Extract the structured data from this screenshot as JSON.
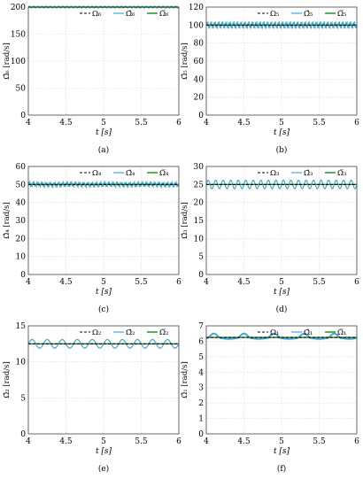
{
  "colors": {
    "ref": "#000000",
    "est": "#4aa3df",
    "filt": "#1a8a1a",
    "grid": "#d9d9d9",
    "frame": "#444444"
  },
  "chart_data": [
    {
      "type": "line",
      "caption": "(a)",
      "xlabel": "t [s]",
      "ylabel": "Ω̂₆ [rad/s]",
      "xlim": [
        4,
        6
      ],
      "ylim": [
        0,
        200
      ],
      "xticks": [
        "4",
        "4.5",
        "5",
        "5.5",
        "6"
      ],
      "yticks": [
        "0",
        "50",
        "100",
        "150",
        "200"
      ],
      "legend": [
        "Ω₆",
        "Ω̂₆",
        "Ω̅₆"
      ],
      "series": [
        {
          "name": "Ω₆",
          "y_const": 200
        },
        {
          "name": "Ω̂₆",
          "mean": 200,
          "amp": 1.8,
          "cycles": 36,
          "style": "sine"
        },
        {
          "name": "Ω̅₆",
          "y_const": 200
        }
      ]
    },
    {
      "type": "line",
      "caption": "(b)",
      "xlabel": "t [s]",
      "ylabel": "Ω̂₅ [rad/s]",
      "xlim": [
        4,
        6
      ],
      "ylim": [
        0,
        120
      ],
      "xticks": [
        "4",
        "4.5",
        "5",
        "5.5",
        "6"
      ],
      "yticks": [
        "0",
        "20",
        "40",
        "60",
        "80",
        "100",
        "120"
      ],
      "legend": [
        "Ω₅",
        "Ω̂₅",
        "Ω̅₅"
      ],
      "series": [
        {
          "name": "Ω₅",
          "y_const": 100
        },
        {
          "name": "Ω̂₅",
          "mean": 100,
          "amp": 4,
          "cycles": 40,
          "style": "spiky"
        },
        {
          "name": "Ω̅₅",
          "y_const": 100
        }
      ]
    },
    {
      "type": "line",
      "caption": "(c)",
      "xlabel": "t [s]",
      "ylabel": "Ω̂₄ [rad/s]",
      "xlim": [
        4,
        6
      ],
      "ylim": [
        0,
        60
      ],
      "xticks": [
        "4",
        "4.5",
        "5",
        "5.5",
        "6"
      ],
      "yticks": [
        "0",
        "10",
        "20",
        "30",
        "40",
        "50",
        "60"
      ],
      "legend": [
        "Ω₄",
        "Ω̂₄",
        "Ω̅₄"
      ],
      "series": [
        {
          "name": "Ω₄",
          "y_const": 50
        },
        {
          "name": "Ω̂₄",
          "mean": 50,
          "amp": 1.5,
          "cycles": 36,
          "style": "spiky"
        },
        {
          "name": "Ω̅₄",
          "y_const": 50
        }
      ]
    },
    {
      "type": "line",
      "caption": "(d)",
      "xlabel": "t [s]",
      "ylabel": "Ω̂₃ [rad/s]",
      "xlim": [
        4,
        6
      ],
      "ylim": [
        0,
        30
      ],
      "xticks": [
        "4",
        "4.5",
        "5",
        "5.5",
        "6"
      ],
      "yticks": [
        "0",
        "5",
        "10",
        "15",
        "20",
        "25",
        "30"
      ],
      "legend": [
        "Ω₃",
        "Ω̂₃",
        "Ω̅₃"
      ],
      "series": [
        {
          "name": "Ω₃",
          "y_const": 25
        },
        {
          "name": "Ω̂₃",
          "mean": 25,
          "amp": 1.2,
          "cycles": 20,
          "style": "sine"
        },
        {
          "name": "Ω̅₃",
          "y_const": 25
        }
      ]
    },
    {
      "type": "line",
      "caption": "(e)",
      "xlabel": "t [s]",
      "ylabel": "Ω̂₂ [rad/s]",
      "xlim": [
        4,
        6
      ],
      "ylim": [
        0,
        15
      ],
      "xticks": [
        "4",
        "4.5",
        "5",
        "5.5",
        "6"
      ],
      "yticks": [
        "0",
        "5",
        "10",
        "15"
      ],
      "legend": [
        "Ω₂",
        "Ω̂₂",
        "Ω̅₂"
      ],
      "series": [
        {
          "name": "Ω₂",
          "y_const": 12.5
        },
        {
          "name": "Ω̂₂",
          "mean": 12.5,
          "amp": 0.6,
          "cycles": 10,
          "style": "sine"
        },
        {
          "name": "Ω̅₂",
          "y_const": 12.5
        }
      ]
    },
    {
      "type": "line",
      "caption": "(f)",
      "xlabel": "t [s]",
      "ylabel": "Ω̂₁ [rad/s]",
      "xlim": [
        4,
        6
      ],
      "ylim": [
        0,
        7
      ],
      "xticks": [
        "4",
        "4.5",
        "5",
        "5.5",
        "6"
      ],
      "yticks": [
        "0",
        "1",
        "2",
        "3",
        "4",
        "5",
        "6",
        "7"
      ],
      "legend": [
        "Ω₁",
        "Ω̂₁",
        "Ω̅₁"
      ],
      "series": [
        {
          "name": "Ω₁",
          "y_const": 6.25
        },
        {
          "name": "Ω̂₁",
          "mean": 6.3,
          "amp": 0.3,
          "cycles": 5,
          "style": "bumps"
        },
        {
          "name": "Ω̅₁",
          "y_const": 6.25
        }
      ]
    }
  ]
}
